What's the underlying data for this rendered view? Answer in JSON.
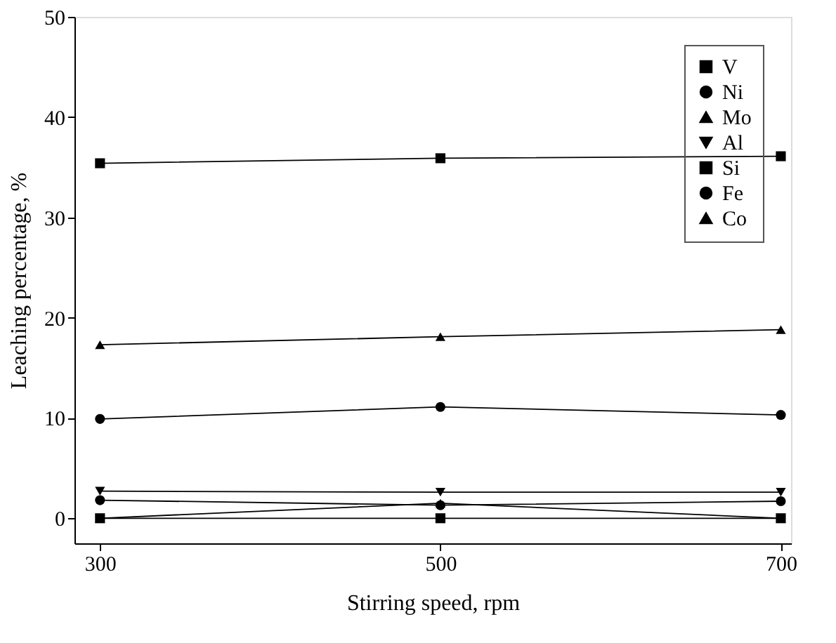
{
  "chart_data": {
    "type": "line",
    "xlabel": "Stirring speed, rpm",
    "ylabel": "Leaching percentage, %",
    "x": [
      300,
      500,
      700
    ],
    "xlim": [
      285,
      706
    ],
    "xticks": [
      300,
      500,
      700
    ],
    "ylim": [
      -2.5,
      50
    ],
    "yticks": [
      0,
      10,
      20,
      30,
      40,
      50
    ],
    "grid": false,
    "legend": "top right",
    "line_style": "solid",
    "series": [
      {
        "name": "V",
        "color": "#000000",
        "marker": "square",
        "values": [
          35.4,
          35.9,
          36.1
        ]
      },
      {
        "name": "Ni",
        "color": "#000000",
        "marker": "circle",
        "values": [
          1.8,
          1.3,
          1.7
        ]
      },
      {
        "name": "Mo",
        "color": "#000000",
        "marker": "triangle",
        "values": [
          17.3,
          18.1,
          18.8
        ]
      },
      {
        "name": "Al",
        "color": "#000000",
        "marker": "triangle-down",
        "values": [
          2.7,
          2.6,
          2.6
        ]
      },
      {
        "name": "Si",
        "color": "#000000",
        "marker": "square",
        "values": [
          0,
          0,
          0
        ]
      },
      {
        "name": "Fe",
        "color": "#000000",
        "marker": "circle",
        "values": [
          9.9,
          11.1,
          10.3
        ]
      },
      {
        "name": "Co",
        "color": "#000000",
        "marker": "triangle",
        "values": [
          0,
          1.5,
          0
        ]
      }
    ]
  }
}
